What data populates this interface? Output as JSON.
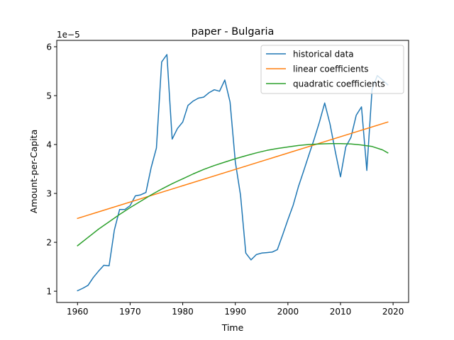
{
  "chart_data": {
    "type": "line",
    "title": "paper - Bulgaria",
    "xlabel": "Time",
    "ylabel": "Amount-per-Capita",
    "y_scale_label": "1e−5",
    "xlim": [
      1956.05,
      2022.95
    ],
    "ylim": [
      0.77,
      6.13
    ],
    "x_ticks": [
      1960,
      1970,
      1980,
      1990,
      2000,
      2010,
      2020
    ],
    "y_ticks": [
      1,
      2,
      3,
      4,
      5,
      6
    ],
    "grid": false,
    "legend_position": "top-right",
    "series": [
      {
        "name": "historical data",
        "color": "#1f77b4",
        "x": [
          1960,
          1961,
          1962,
          1963,
          1964,
          1965,
          1966,
          1967,
          1968,
          1969,
          1970,
          1971,
          1972,
          1973,
          1974,
          1975,
          1976,
          1977,
          1978,
          1979,
          1980,
          1981,
          1982,
          1983,
          1984,
          1985,
          1986,
          1987,
          1988,
          1989,
          1990,
          1991,
          1992,
          1993,
          1994,
          1995,
          1996,
          1997,
          1998,
          1999,
          2000,
          2001,
          2002,
          2003,
          2004,
          2005,
          2006,
          2007,
          2008,
          2009,
          2010,
          2011,
          2012,
          2013,
          2014,
          2015,
          2016,
          2017,
          2018,
          2019
        ],
        "y": [
          1.01,
          1.06,
          1.12,
          1.28,
          1.41,
          1.53,
          1.52,
          2.25,
          2.67,
          2.67,
          2.75,
          2.95,
          2.97,
          3.02,
          3.53,
          3.93,
          5.69,
          5.84,
          4.11,
          4.33,
          4.46,
          4.8,
          4.89,
          4.95,
          4.97,
          5.06,
          5.12,
          5.09,
          5.32,
          4.87,
          3.65,
          2.96,
          1.78,
          1.64,
          1.75,
          1.78,
          1.79,
          1.8,
          1.85,
          2.15,
          2.46,
          2.76,
          3.14,
          3.46,
          3.79,
          4.11,
          4.46,
          4.85,
          4.42,
          3.86,
          3.34,
          3.95,
          4.15,
          4.6,
          4.77,
          3.47,
          5.13,
          5.41,
          5.32,
          5.22
        ]
      },
      {
        "name": "linear coefficients",
        "color": "#ff7f0e",
        "x": [
          1960,
          2019
        ],
        "y": [
          2.49,
          4.46
        ]
      },
      {
        "name": "quadratic coefficients",
        "color": "#2ca02c",
        "x": [
          1960,
          1962,
          1964,
          1966,
          1968,
          1970,
          1972,
          1974,
          1976,
          1978,
          1980,
          1982,
          1984,
          1986,
          1988,
          1990,
          1992,
          1994,
          1996,
          1998,
          2000,
          2002,
          2004,
          2006,
          2008,
          2010,
          2012,
          2014,
          2016,
          2018,
          2019
        ],
        "y": [
          1.93,
          2.1,
          2.27,
          2.42,
          2.57,
          2.71,
          2.84,
          2.97,
          3.09,
          3.2,
          3.3,
          3.4,
          3.49,
          3.57,
          3.64,
          3.71,
          3.77,
          3.83,
          3.88,
          3.92,
          3.95,
          3.98,
          4.0,
          4.01,
          4.02,
          4.02,
          4.01,
          3.99,
          3.96,
          3.89,
          3.83
        ]
      }
    ]
  }
}
